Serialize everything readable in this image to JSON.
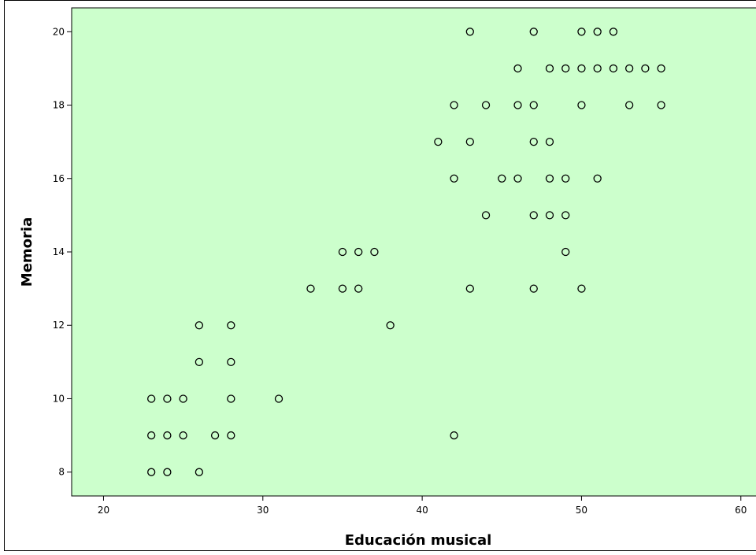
{
  "chart_data": {
    "type": "scatter",
    "title": "",
    "xlabel": "Educación musical",
    "ylabel": "Memoria",
    "xlim": [
      18,
      61
    ],
    "ylim": [
      7.35,
      20.65
    ],
    "x_ticks": [
      20,
      30,
      40,
      50,
      60
    ],
    "y_ticks": [
      8,
      10,
      12,
      14,
      16,
      18,
      20
    ],
    "grid": false,
    "legend": "none",
    "background_color": "#ccffcc",
    "marker_color": "#000000",
    "points": [
      {
        "x": 43,
        "y": 20
      },
      {
        "x": 47,
        "y": 20
      },
      {
        "x": 50,
        "y": 20
      },
      {
        "x": 51,
        "y": 20
      },
      {
        "x": 52,
        "y": 20
      },
      {
        "x": 46,
        "y": 19
      },
      {
        "x": 48,
        "y": 19
      },
      {
        "x": 49,
        "y": 19
      },
      {
        "x": 50,
        "y": 19
      },
      {
        "x": 51,
        "y": 19
      },
      {
        "x": 52,
        "y": 19
      },
      {
        "x": 53,
        "y": 19
      },
      {
        "x": 54,
        "y": 19
      },
      {
        "x": 55,
        "y": 19
      },
      {
        "x": 42,
        "y": 18
      },
      {
        "x": 44,
        "y": 18
      },
      {
        "x": 46,
        "y": 18
      },
      {
        "x": 47,
        "y": 18
      },
      {
        "x": 50,
        "y": 18
      },
      {
        "x": 53,
        "y": 18
      },
      {
        "x": 55,
        "y": 18
      },
      {
        "x": 41,
        "y": 17
      },
      {
        "x": 43,
        "y": 17
      },
      {
        "x": 47,
        "y": 17
      },
      {
        "x": 48,
        "y": 17
      },
      {
        "x": 42,
        "y": 16
      },
      {
        "x": 45,
        "y": 16
      },
      {
        "x": 46,
        "y": 16
      },
      {
        "x": 48,
        "y": 16
      },
      {
        "x": 49,
        "y": 16
      },
      {
        "x": 51,
        "y": 16
      },
      {
        "x": 44,
        "y": 15
      },
      {
        "x": 47,
        "y": 15
      },
      {
        "x": 48,
        "y": 15
      },
      {
        "x": 49,
        "y": 15
      },
      {
        "x": 35,
        "y": 14
      },
      {
        "x": 36,
        "y": 14
      },
      {
        "x": 37,
        "y": 14
      },
      {
        "x": 49,
        "y": 14
      },
      {
        "x": 33,
        "y": 13
      },
      {
        "x": 35,
        "y": 13
      },
      {
        "x": 36,
        "y": 13
      },
      {
        "x": 43,
        "y": 13
      },
      {
        "x": 47,
        "y": 13
      },
      {
        "x": 50,
        "y": 13
      },
      {
        "x": 26,
        "y": 12
      },
      {
        "x": 28,
        "y": 12
      },
      {
        "x": 38,
        "y": 12
      },
      {
        "x": 26,
        "y": 11
      },
      {
        "x": 28,
        "y": 11
      },
      {
        "x": 23,
        "y": 10
      },
      {
        "x": 24,
        "y": 10
      },
      {
        "x": 25,
        "y": 10
      },
      {
        "x": 28,
        "y": 10
      },
      {
        "x": 31,
        "y": 10
      },
      {
        "x": 23,
        "y": 9
      },
      {
        "x": 24,
        "y": 9
      },
      {
        "x": 25,
        "y": 9
      },
      {
        "x": 27,
        "y": 9
      },
      {
        "x": 28,
        "y": 9
      },
      {
        "x": 42,
        "y": 9
      },
      {
        "x": 23,
        "y": 8
      },
      {
        "x": 24,
        "y": 8
      },
      {
        "x": 26,
        "y": 8
      }
    ]
  }
}
